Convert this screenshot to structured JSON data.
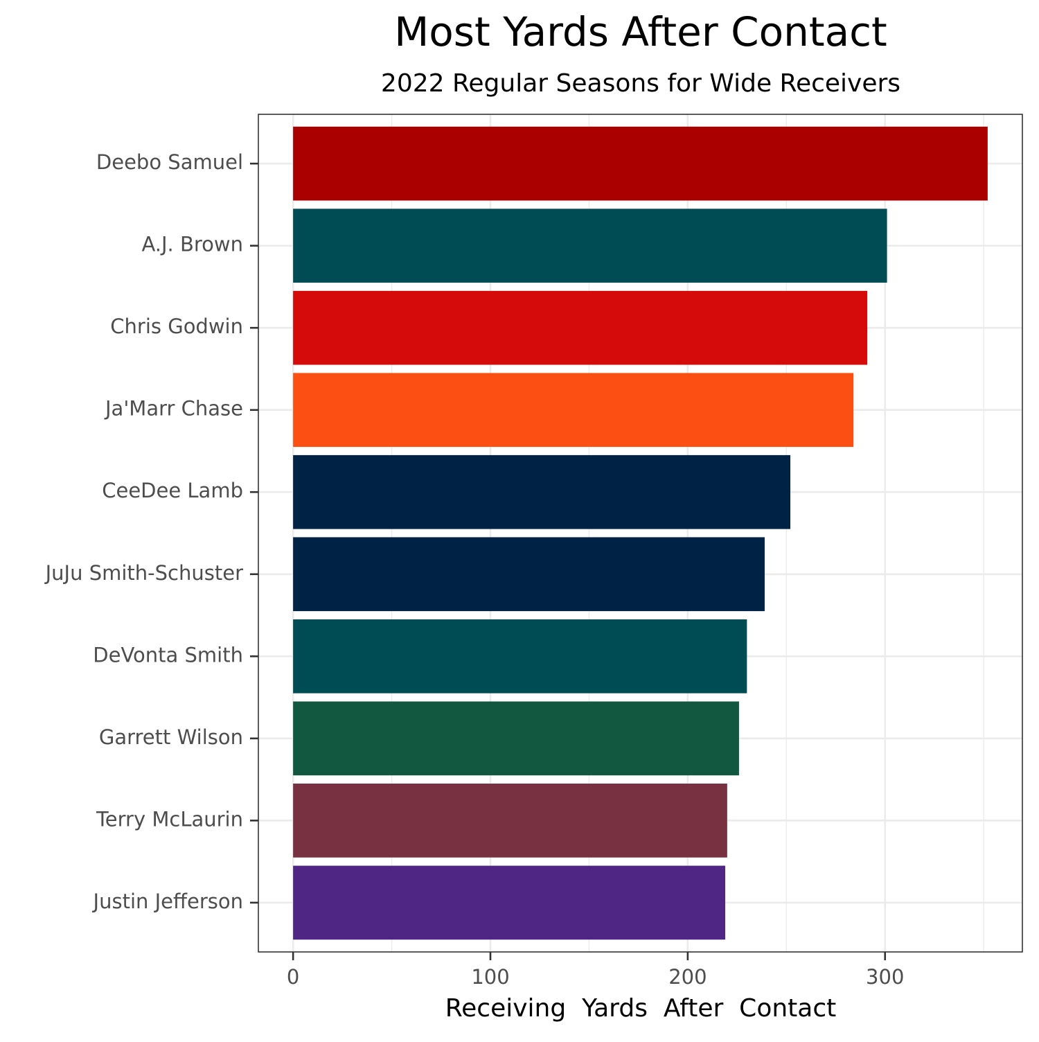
{
  "chart_data": {
    "type": "bar",
    "orientation": "horizontal",
    "title": "Most Yards After Contact",
    "subtitle": "2022 Regular Seasons for Wide Receivers",
    "xlabel": "Receiving  Yards  After  Contact",
    "ylabel": "",
    "xlim": [
      -17.6,
      369.6
    ],
    "x_ticks": [
      0,
      100,
      200,
      300
    ],
    "x_minor_ticks": [
      50,
      150,
      250,
      350
    ],
    "grid": true,
    "legend": "none",
    "categories": [
      "Deebo Samuel",
      "A.J. Brown",
      "Chris Godwin",
      "Ja'Marr Chase",
      "CeeDee Lamb",
      "JuJu Smith-Schuster",
      "DeVonta Smith",
      "Garrett Wilson",
      "Terry McLaurin",
      "Justin Jefferson"
    ],
    "values": [
      352,
      301,
      291,
      284,
      252,
      239,
      230,
      226,
      220,
      219
    ],
    "colors": [
      "#AA0000",
      "#004C54",
      "#D50A0A",
      "#FB4F14",
      "#002244",
      "#002244",
      "#004C54",
      "#125740",
      "#773141",
      "#4F2683"
    ]
  }
}
